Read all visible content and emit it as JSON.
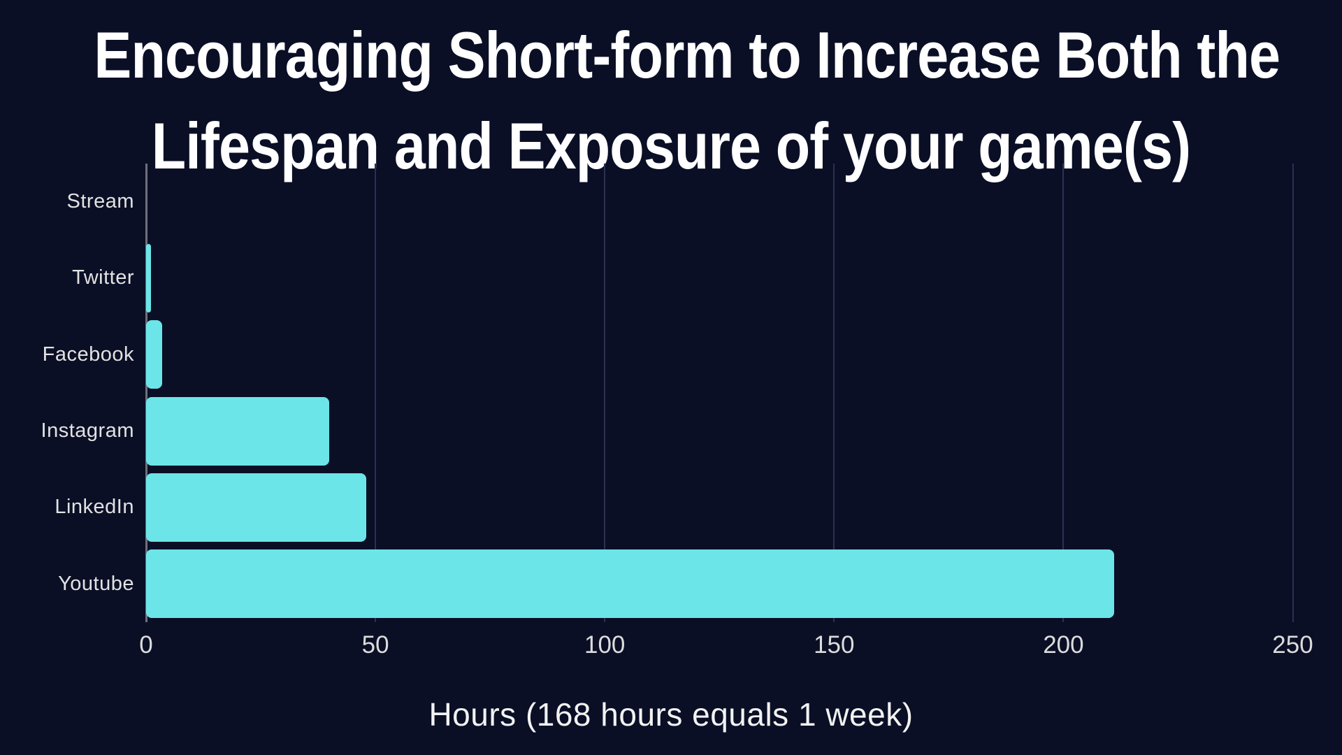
{
  "page": {
    "background_color": "#0A0F26"
  },
  "title": {
    "line1": "Encouraging Short-form to Increase Both the",
    "line2": "Lifespan and Exposure of your game(s)",
    "color": "#FFFFFF"
  },
  "chart_data": {
    "type": "bar",
    "orientation": "horizontal",
    "title": "Encouraging Short-form to Increase Both the Lifespan and Exposure of your game(s)",
    "categories": [
      "Stream",
      "Twitter",
      "Facebook",
      "Instagram",
      "LinkedIn",
      "Youtube"
    ],
    "values": [
      0,
      1,
      3.5,
      40,
      48,
      211
    ],
    "series_unit": "hours",
    "xlabel": "Hours (168 hours equals 1 week)",
    "xticks": [
      0,
      50,
      100,
      150,
      200,
      250
    ],
    "xlim": [
      0,
      250
    ],
    "grid": true,
    "legend": false,
    "bar_color": "#6CE5E8",
    "gridline_color": "#2A3152",
    "axis_line_color": "#6E7079",
    "tick_label_color": "#DCDCDC",
    "category_label_color": "#E2E2E2"
  }
}
